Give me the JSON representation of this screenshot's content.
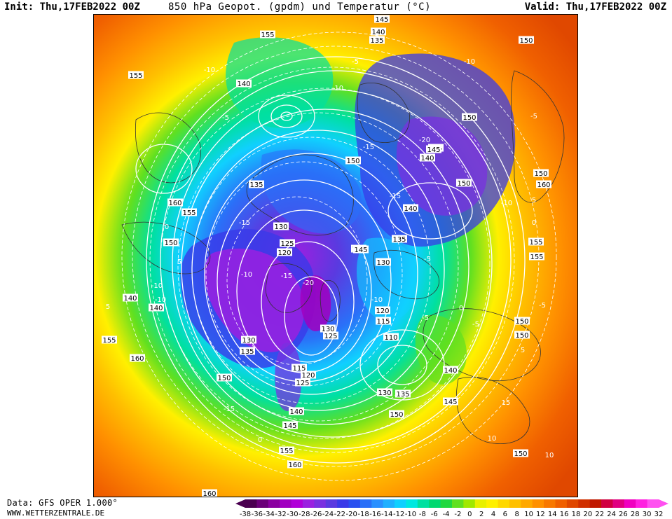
{
  "header": {
    "init": "Init: Thu,17FEB2022 00Z",
    "title": "850 hPa Geopot. (gpdm) und Temperatur (°C)",
    "valid": "Valid: Thu,17FEB2022 00Z"
  },
  "footer": {
    "data_source": "Data: GFS OPER 1.000°",
    "website": "WWW.WETTERZENTRALE.DE"
  },
  "colorbar": {
    "ticks": [
      "-38",
      "-36",
      "-34",
      "-32",
      "-30",
      "-28",
      "-26",
      "-24",
      "-22",
      "-20",
      "-18",
      "-16",
      "-14",
      "-12",
      "-10",
      "-8",
      "-6",
      "-4",
      "-2",
      "0",
      "2",
      "4",
      "6",
      "8",
      "10",
      "12",
      "14",
      "16",
      "18",
      "20",
      "22",
      "24",
      "26",
      "28",
      "30",
      "32"
    ],
    "colors": [
      "#4a0050",
      "#6a0078",
      "#8a00a0",
      "#a000c0",
      "#b000d8",
      "#9a20e0",
      "#7a30e0",
      "#5a3ae0",
      "#3a3ae8",
      "#2a50f0",
      "#2a70f8",
      "#2a90ff",
      "#20b0ff",
      "#10d0ff",
      "#00e8e0",
      "#00e0a0",
      "#00d870",
      "#20d840",
      "#60e020",
      "#a0e800",
      "#e8f000",
      "#fff000",
      "#ffd800",
      "#ffc000",
      "#ffa800",
      "#ff9000",
      "#f87800",
      "#f06000",
      "#e04800",
      "#d03000",
      "#c01800",
      "#d00040",
      "#e00080",
      "#f000c0",
      "#ff20e0",
      "#ff50f0"
    ]
  },
  "map": {
    "geopotential_labels": [
      {
        "text": "145"
      },
      {
        "text": "140"
      },
      {
        "text": "135"
      },
      {
        "text": "155"
      },
      {
        "text": "150"
      },
      {
        "text": "155"
      },
      {
        "text": "140"
      },
      {
        "text": "150"
      },
      {
        "text": "135"
      },
      {
        "text": "140"
      },
      {
        "text": "150"
      },
      {
        "text": "145"
      },
      {
        "text": "150"
      },
      {
        "text": "160"
      },
      {
        "text": "135"
      },
      {
        "text": "160"
      },
      {
        "text": "155"
      },
      {
        "text": "140"
      },
      {
        "text": "150"
      },
      {
        "text": "145"
      },
      {
        "text": "150"
      },
      {
        "text": "130"
      },
      {
        "text": "125"
      },
      {
        "text": "120"
      },
      {
        "text": "135"
      },
      {
        "text": "145"
      },
      {
        "text": "155"
      },
      {
        "text": "130"
      },
      {
        "text": "155"
      },
      {
        "text": "140"
      },
      {
        "text": "140"
      },
      {
        "text": "120"
      },
      {
        "text": "115"
      },
      {
        "text": "150"
      },
      {
        "text": "130"
      },
      {
        "text": "125"
      },
      {
        "text": "110"
      },
      {
        "text": "150"
      },
      {
        "text": "155"
      },
      {
        "text": "130"
      },
      {
        "text": "135"
      },
      {
        "text": "160"
      },
      {
        "text": "115"
      },
      {
        "text": "120"
      },
      {
        "text": "150"
      },
      {
        "text": "125"
      },
      {
        "text": "140"
      },
      {
        "text": "130"
      },
      {
        "text": "135"
      },
      {
        "text": "145"
      },
      {
        "text": "140"
      },
      {
        "text": "145"
      },
      {
        "text": "150"
      },
      {
        "text": "155"
      },
      {
        "text": "160"
      },
      {
        "text": "150"
      },
      {
        "text": "160"
      }
    ],
    "temperature_labels": [
      {
        "text": "-10"
      },
      {
        "text": "-5"
      },
      {
        "text": "-10"
      },
      {
        "text": "-5"
      },
      {
        "text": "-10"
      },
      {
        "text": "-15"
      },
      {
        "text": "-20"
      },
      {
        "text": "-15"
      },
      {
        "text": "-10"
      },
      {
        "text": "-5"
      },
      {
        "text": "0"
      },
      {
        "text": "-15"
      },
      {
        "text": "-5"
      },
      {
        "text": "0"
      },
      {
        "text": "5"
      },
      {
        "text": "-10"
      },
      {
        "text": "5"
      },
      {
        "text": "-10"
      },
      {
        "text": "-15"
      },
      {
        "text": "-20"
      },
      {
        "text": "-10"
      },
      {
        "text": "-5"
      },
      {
        "text": "0"
      },
      {
        "text": "-5"
      },
      {
        "text": "5"
      },
      {
        "text": "15"
      },
      {
        "text": "10"
      },
      {
        "text": "-10"
      },
      {
        "text": "-5"
      },
      {
        "text": "5"
      },
      {
        "text": "10"
      },
      {
        "text": "0"
      },
      {
        "text": "-15"
      }
    ]
  }
}
